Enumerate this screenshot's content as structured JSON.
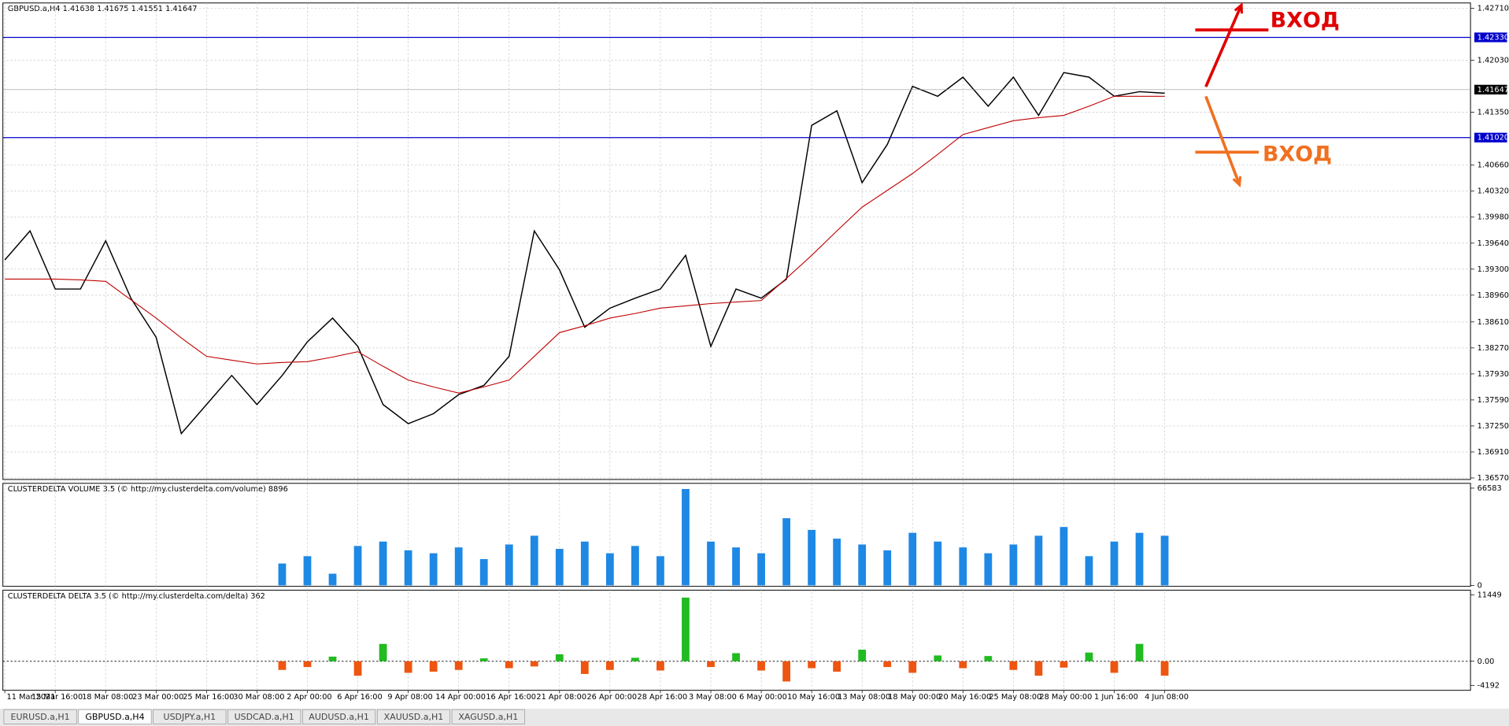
{
  "header": {
    "title": "GBPUSD.a,H4  1.41638 1.41675 1.41551 1.41647"
  },
  "tabs": [
    "EURUSD.a,H1",
    "GBPUSD.a,H4",
    "USDJPY.a,H1",
    "USDCAD.a,H1",
    "AUDUSD.a,H1",
    "XAUUSD.a,H1",
    "XAGUSD.a,H1"
  ],
  "active_tab": 1,
  "annotations": [
    {
      "text": "ВХОД",
      "color": "#e00000"
    },
    {
      "text": "ВХОД",
      "color": "#f07020"
    }
  ],
  "chart_data": [
    {
      "type": "line",
      "categories": [
        "11 Mar 2021",
        null,
        "15 Mar 16:00",
        null,
        "18 Mar 08:00",
        null,
        "23 Mar 00:00",
        null,
        "25 Mar 16:00",
        null,
        "30 Mar 08:00",
        null,
        "2 Apr 00:00",
        null,
        "6 Apr 16:00",
        null,
        "9 Apr 08:00",
        null,
        "14 Apr 00:00",
        null,
        "16 Apr 16:00",
        null,
        "21 Apr 08:00",
        null,
        "26 Apr 00:00",
        null,
        "28 Apr 16:00",
        null,
        "3 May 08:00",
        null,
        "6 May 00:00",
        null,
        "10 May 16:00",
        null,
        "13 May 08:00",
        null,
        "18 May 00:00",
        null,
        "20 May 16:00",
        null,
        "25 May 08:00",
        null,
        "28 May 00:00",
        null,
        "1 Jun 16:00",
        null,
        "4 Jun 08:00"
      ],
      "series": [
        {
          "color": "#000000",
          "values": [
            1.3942,
            1.398,
            1.3904,
            1.3904,
            1.3967,
            1.3892,
            1.3841,
            1.3715,
            1.3753,
            1.3791,
            1.3753,
            1.3791,
            1.3835,
            1.3866,
            1.3829,
            1.3753,
            1.3728,
            1.3741,
            1.3766,
            1.3778,
            1.3816,
            1.398,
            1.3929,
            1.3854,
            1.3879,
            1.3892,
            1.3904,
            1.3948,
            1.3829,
            1.3904,
            1.3892,
            1.3917,
            1.4118,
            1.4137,
            1.4043,
            1.4093,
            1.4169,
            1.4156,
            1.4181,
            1.4143,
            1.4181,
            1.4131,
            1.4187,
            1.4181,
            1.4156,
            1.4162,
            1.416
          ]
        },
        {
          "color": "#c00000",
          "values": [
            1.3917,
            1.3917,
            1.3917,
            1.3916,
            1.3914,
            1.389,
            1.3866,
            1.384,
            1.3816,
            1.3811,
            1.3806,
            1.3808,
            1.3809,
            1.3815,
            1.3822,
            1.3803,
            1.3785,
            1.3776,
            1.3768,
            1.3776,
            1.3785,
            1.3816,
            1.3847,
            1.3856,
            1.3866,
            1.3872,
            1.3879,
            1.3882,
            1.3885,
            1.3887,
            1.3889,
            1.3918,
            1.3948,
            1.398,
            1.4011,
            1.4033,
            1.4055,
            1.408,
            1.4106,
            1.4115,
            1.4124,
            1.4128,
            1.4131,
            1.4143,
            1.4156,
            1.4156,
            1.4156
          ]
        }
      ],
      "ylim": [
        1.3655,
        1.4278
      ],
      "yticks": [
        {
          "value": 1.4271,
          "label": "1.42710"
        },
        {
          "value": 1.4203,
          "label": "1.42030"
        },
        {
          "value": 1.4135,
          "label": "1.41350"
        },
        {
          "value": 1.4066,
          "label": "1.40660"
        },
        {
          "value": 1.4032,
          "label": "1.40320"
        },
        {
          "value": 1.3998,
          "label": "1.39980"
        },
        {
          "value": 1.3964,
          "label": "1.39640"
        },
        {
          "value": 1.393,
          "label": "1.39300"
        },
        {
          "value": 1.3896,
          "label": "1.38960"
        },
        {
          "value": 1.3861,
          "label": "1.38610"
        },
        {
          "value": 1.3827,
          "label": "1.38270"
        },
        {
          "value": 1.3793,
          "label": "1.37930"
        },
        {
          "value": 1.3759,
          "label": "1.37590"
        },
        {
          "value": 1.3725,
          "label": "1.37250"
        },
        {
          "value": 1.3691,
          "label": "1.36910"
        },
        {
          "value": 1.3657,
          "label": "1.36570"
        }
      ],
      "levels": [
        {
          "value": 1.4233,
          "label": "1.42330",
          "color": "#0000cc"
        },
        {
          "value": 1.4102,
          "label": "1.41020",
          "color": "#0000cc"
        }
      ],
      "current": {
        "value": 1.41647,
        "label": "1.41647"
      },
      "grid": true
    },
    {
      "type": "bar",
      "title": "CLUSTERDELTA VOLUME 3.5 (© http://my.clusterdelta.com/volume) 8896",
      "color": "#1e88e5",
      "values": [
        null,
        null,
        null,
        null,
        null,
        null,
        null,
        null,
        null,
        null,
        null,
        15000,
        20000,
        8000,
        27000,
        30000,
        24000,
        22000,
        26000,
        18000,
        28000,
        34000,
        25000,
        30000,
        22000,
        27000,
        20000,
        66000,
        30000,
        26000,
        22000,
        46000,
        38000,
        32000,
        28000,
        24000,
        36000,
        30000,
        26000,
        22000,
        28000,
        34000,
        40000,
        20000,
        30000,
        36000,
        34000
      ],
      "ylim": [
        0,
        66583
      ],
      "yticks": [
        66583,
        0
      ]
    },
    {
      "type": "bar",
      "title": "CLUSTERDELTA DELTA 3.5 (© http://my.clusterdelta.com/delta) 362",
      "pos_color": "#22bb22",
      "neg_color": "#ee5511",
      "values": [
        null,
        null,
        null,
        null,
        null,
        null,
        null,
        null,
        null,
        null,
        null,
        -1500,
        -1000,
        800,
        -2500,
        3000,
        -2000,
        -1800,
        -1500,
        500,
        -1200,
        -900,
        1200,
        -2200,
        -1500,
        600,
        -1600,
        11000,
        -1000,
        1400,
        -1600,
        -3500,
        -1200,
        -1800,
        2000,
        -1000,
        -2000,
        1000,
        -1200,
        900,
        -1500,
        -2500,
        -1100,
        1500,
        -2000,
        3000,
        -2500
      ],
      "ylim": [
        -4192,
        11449
      ],
      "yticks": [
        11449,
        {
          "value": 0,
          "label": "0.00"
        },
        -4192
      ]
    }
  ]
}
